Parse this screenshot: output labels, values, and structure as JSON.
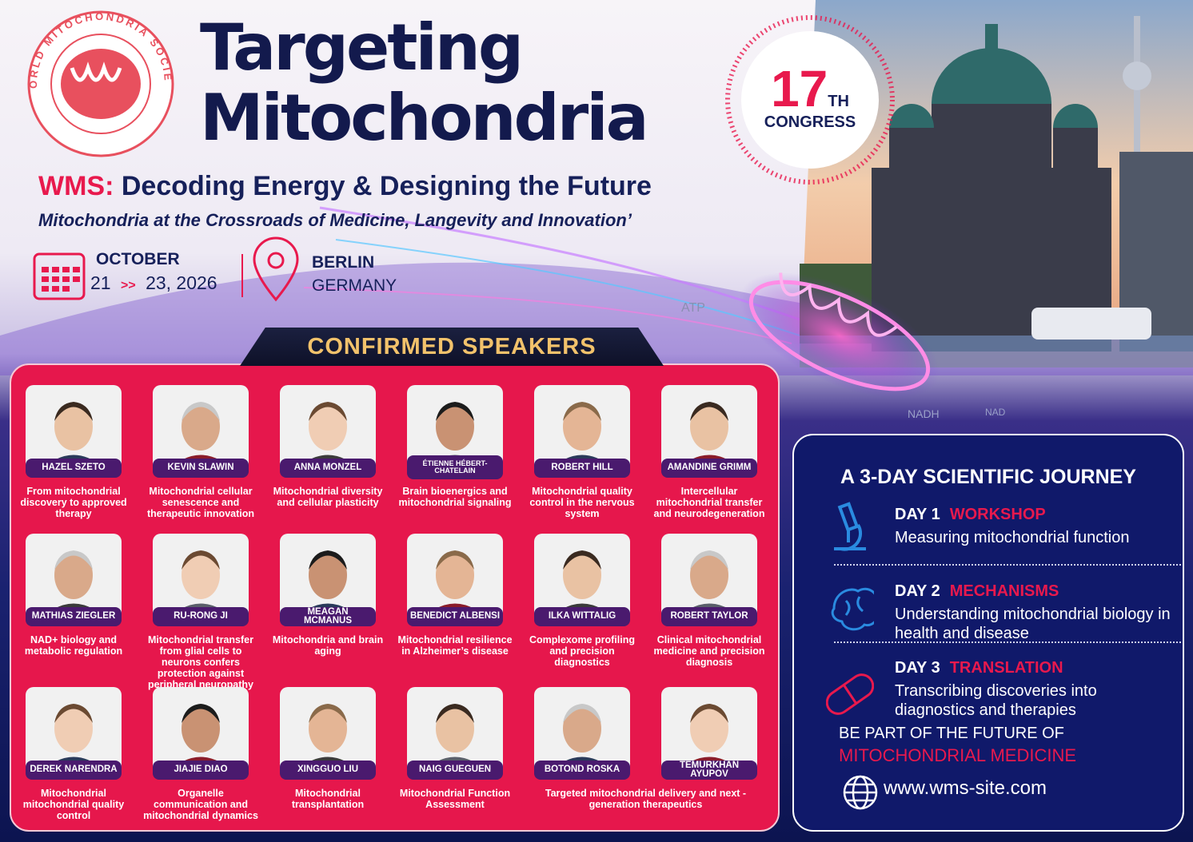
{
  "logo": {
    "ring_text": "WORLD MITOCHONDRIA SOCIETY"
  },
  "header": {
    "title_line1": "Targeting",
    "title_line2": "Mitochondria",
    "subtitle_prefix": "WMS:",
    "subtitle": "Decoding Energy & Designing the Future",
    "tagline": "Mitochondria at the Crossroads of Medicine, Langevity and Innovation’"
  },
  "badge": {
    "number": "17",
    "suffix": "TH",
    "label": "CONGRESS"
  },
  "event": {
    "month": "OCTOBER",
    "start_day": "21",
    "arrow": ">>",
    "end": "23, 2026",
    "city": "BERLIN",
    "country": "GERMANY"
  },
  "background_labels": [
    "ATP",
    "NADH",
    "NAD"
  ],
  "speakers": {
    "heading": "CONFIRMED SPEAKERS",
    "list": [
      {
        "name": "HAZEL SZETO",
        "topic": "From mitochondrial discovery to approved therapy"
      },
      {
        "name": "KEVIN SLAWIN",
        "topic": "Mitochondrial cellular senescence and therapeutic innovation"
      },
      {
        "name": "ANNA MONZEL",
        "topic": "Mitochondrial diversity and cellular plasticity"
      },
      {
        "name": "ÉTIENNE HÉBERT-CHATELAIN",
        "topic": "Brain bioenergics and mitochondrial signaling"
      },
      {
        "name": "ROBERT HILL",
        "topic": "Mitochondrial quality control in the nervous system"
      },
      {
        "name": "AMANDINE GRIMM",
        "topic": "Intercellular mitochondrial transfer and neurodegeneration"
      },
      {
        "name": "MATHIAS ZIEGLER",
        "topic": "NAD+ biology and metabolic regulation"
      },
      {
        "name": "RU-RONG JI",
        "topic": "Mitochondrial transfer from glial cells to neurons confers protection against peripheral neuropathy"
      },
      {
        "name": "MEAGAN MCMANUS",
        "topic": "Mitochondria and brain aging"
      },
      {
        "name": "BENEDICT ALBENSI",
        "topic": "Mitochondrial resilience in Alzheimer’s disease"
      },
      {
        "name": "ILKA WITTALIG",
        "topic": "Complexome profiling and precision diagnostics"
      },
      {
        "name": "ROBERT TAYLOR",
        "topic": "Clinical mitochondrial medicine and precision diagnosis"
      },
      {
        "name": "DEREK NARENDRA",
        "topic": "Mitochondrial mitochondrial quality control"
      },
      {
        "name": "JIAJIE DIAO",
        "topic": "Organelle communication and mitochondrial dynamics"
      },
      {
        "name": "XINGGUO LIU",
        "topic": "Mitochondrial transplantation"
      },
      {
        "name": "NAIG GUEGUEN",
        "topic": "Mitochondrial Function Assessment"
      },
      {
        "name": "BOTOND ROSKA",
        "topic": "Targeted mitochondrial delivery and next - generation therapeutics"
      },
      {
        "name": "TEMURKHAN AYUPOV"
      }
    ]
  },
  "journey": {
    "heading": "A 3-DAY SCIENTIFIC JOURNEY",
    "days": [
      {
        "day": "DAY 1",
        "theme": "WORKSHOP",
        "description": "Measuring mitochondrial function"
      },
      {
        "day": "DAY 2",
        "theme": "MECHANISMS",
        "description": "Understanding mitochondrial biology in health and disease"
      },
      {
        "day": "DAY 3",
        "theme": "TRANSLATION",
        "description": "Transcribing discoveries into diagnostics and therapies"
      }
    ],
    "cta_line1": "BE PART OF THE FUTURE OF",
    "cta_line2": "MITOCHONDRIAL MEDICINE",
    "website": "www.wms-site.com"
  }
}
